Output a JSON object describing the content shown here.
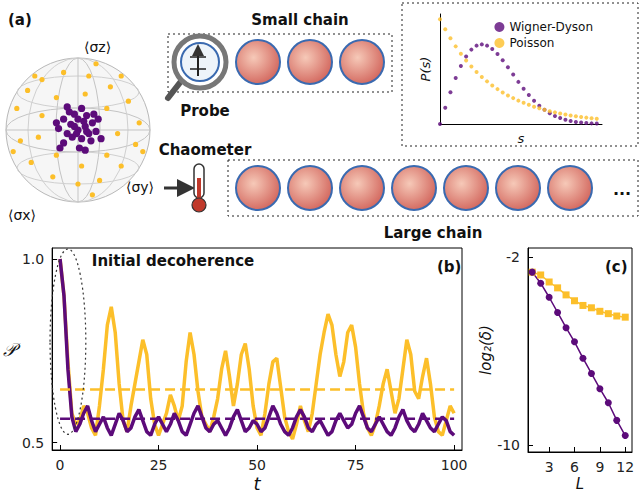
{
  "diagram": {
    "label": "(a)",
    "small_chain": "Small chain",
    "probe": "Probe",
    "chaometer": "Chaometer",
    "large_chain": "Large chain",
    "ellipsis": "...",
    "bloch_sphere": {
      "x_label": "⟨σx⟩",
      "y_label": "⟨σy⟩",
      "z_label": "⟨σz⟩",
      "series": [
        {
          "color": "#fcbf2a",
          "x": [
            -0.85,
            -0.7,
            -0.5,
            -0.2,
            0.15,
            0.45,
            0.7,
            0.85,
            0.8,
            0.6,
            0.3,
            0,
            -0.35,
            -0.65,
            -0.8,
            -0.5,
            -0.3,
            0.1,
            0.4,
            0.55,
            0.4,
            0.05,
            -0.3,
            -0.55,
            0.6,
            -0.6,
            0.25,
            -0.9,
            0.9,
            0.2
          ],
          "y": [
            0.3,
            0.55,
            0.7,
            0.8,
            0.75,
            0.6,
            0.4,
            0.1,
            -0.2,
            -0.5,
            -0.7,
            -0.75,
            -0.65,
            -0.45,
            -0.15,
            0.2,
            0.45,
            0.5,
            0.3,
            -0.05,
            -0.35,
            -0.5,
            -0.35,
            -0.1,
            0.75,
            0.75,
            0.92,
            -0.3,
            -0.3,
            -0.9
          ]
        },
        {
          "color": "#5c0b7a",
          "x": [
            0,
            0.1,
            -0.1,
            0.05,
            -0.15,
            0.2,
            -0.2,
            0.12,
            -0.05,
            0.18,
            -0.2,
            0.25,
            -0.27,
            0.02,
            0.08,
            -0.08,
            0.15,
            -0.12,
            0.28,
            -0.25,
            0.05,
            -0.02,
            0.22,
            -0.3,
            0.1,
            -0.15,
            0.32,
            0,
            -0.05,
            0.12
          ],
          "y": [
            0,
            0.05,
            0.08,
            -0.12,
            -0.05,
            0.1,
            0.15,
            0.2,
            0.22,
            -0.15,
            -0.18,
            -0.02,
            0.02,
            -0.25,
            0.12,
            -0.1,
            -0.05,
            0.25,
            0.15,
            -0.25,
            0.3,
            -0.05,
            0.22,
            0.1,
            -0.28,
            0.32,
            -0.12,
            0.15,
            0.05,
            -0.02
          ]
        }
      ]
    }
  },
  "chart_data": [
    {
      "type": "scatter",
      "marker": "circle",
      "x_label": "s",
      "y_label": "P(s)",
      "xlim": [
        0,
        3.1
      ],
      "ylim": [
        0,
        1.05
      ],
      "tick_labels": false,
      "legend": "upper right",
      "x": [
        0,
        0.1,
        0.2,
        0.3,
        0.4,
        0.5,
        0.6,
        0.7,
        0.8,
        0.9,
        1.0,
        1.1,
        1.2,
        1.3,
        1.4,
        1.5,
        1.6,
        1.7,
        1.8,
        1.9,
        2.0,
        2.1,
        2.2,
        2.3,
        2.4,
        2.5,
        2.6,
        2.7,
        2.8,
        2.9,
        3.0
      ],
      "series": [
        {
          "name": "Wigner-Dyson",
          "color": "#5c0b7a",
          "values": [
            0,
            0.156,
            0.304,
            0.439,
            0.554,
            0.645,
            0.71,
            0.748,
            0.76,
            0.748,
            0.716,
            0.668,
            0.608,
            0.542,
            0.472,
            0.402,
            0.336,
            0.276,
            0.222,
            0.175,
            0.136,
            0.103,
            0.077,
            0.057,
            0.041,
            0.029,
            0.02,
            0.014,
            0.009,
            0.006,
            0.004
          ]
        },
        {
          "name": "Poisson",
          "color": "#fcbf2a",
          "values": [
            1,
            0.905,
            0.819,
            0.741,
            0.67,
            0.607,
            0.549,
            0.497,
            0.449,
            0.407,
            0.368,
            0.333,
            0.301,
            0.273,
            0.247,
            0.223,
            0.202,
            0.183,
            0.165,
            0.15,
            0.135,
            0.122,
            0.111,
            0.1,
            0.091,
            0.082,
            0.074,
            0.067,
            0.061,
            0.055,
            0.05
          ]
        }
      ]
    },
    {
      "type": "line",
      "title": "(b)",
      "annotation": "Initial decoherence",
      "x_label": "t",
      "y_label": "𝒫",
      "xlim": [
        -2,
        102
      ],
      "xticks": [
        0,
        25,
        50,
        75,
        100
      ],
      "ylim": [
        0.48,
        1.03
      ],
      "yticks": [
        0.5,
        {
          "value": 1,
          "label": "1.0"
        }
      ],
      "x": [
        0,
        1,
        2,
        3,
        4,
        5,
        6,
        7,
        8,
        9,
        10,
        11,
        12,
        13,
        14,
        15,
        16,
        17,
        18,
        19,
        20,
        21,
        22,
        23,
        24,
        25,
        26,
        27,
        28,
        29,
        30,
        31,
        32,
        33,
        34,
        35,
        36,
        37,
        38,
        39,
        40,
        41,
        42,
        43,
        44,
        45,
        46,
        47,
        48,
        49,
        50,
        51,
        52,
        53,
        54,
        55,
        56,
        57,
        58,
        59,
        60,
        61,
        62,
        63,
        64,
        65,
        66,
        67,
        68,
        69,
        70,
        71,
        72,
        73,
        74,
        75,
        76,
        77,
        78,
        79,
        80,
        81,
        82,
        83,
        84,
        85,
        86,
        87,
        88,
        89,
        90,
        91,
        92,
        93,
        94,
        95,
        96,
        97,
        98,
        99,
        100
      ],
      "series": [
        {
          "color": "#fcbf2a",
          "values": [
            1.0,
            0.9,
            0.72,
            0.58,
            0.55,
            0.56,
            0.6,
            0.58,
            0.54,
            0.52,
            0.6,
            0.7,
            0.82,
            0.87,
            0.8,
            0.66,
            0.56,
            0.53,
            0.6,
            0.66,
            0.72,
            0.78,
            0.74,
            0.62,
            0.55,
            0.52,
            0.55,
            0.58,
            0.63,
            0.6,
            0.56,
            0.6,
            0.72,
            0.8,
            0.74,
            0.64,
            0.57,
            0.55,
            0.53,
            0.57,
            0.62,
            0.7,
            0.75,
            0.68,
            0.6,
            0.66,
            0.74,
            0.77,
            0.7,
            0.6,
            0.54,
            0.52,
            0.58,
            0.66,
            0.72,
            0.73,
            0.65,
            0.57,
            0.53,
            0.51,
            0.55,
            0.6,
            0.56,
            0.53,
            0.58,
            0.66,
            0.74,
            0.8,
            0.85,
            0.82,
            0.74,
            0.68,
            0.72,
            0.8,
            0.82,
            0.76,
            0.66,
            0.58,
            0.54,
            0.52,
            0.55,
            0.6,
            0.66,
            0.7,
            0.64,
            0.58,
            0.62,
            0.7,
            0.78,
            0.74,
            0.64,
            0.62,
            0.68,
            0.73,
            0.66,
            0.57,
            0.53,
            0.52,
            0.56,
            0.6,
            0.58
          ]
        },
        {
          "color": "#5c0b7a",
          "values": [
            1.0,
            0.9,
            0.7,
            0.57,
            0.53,
            0.55,
            0.58,
            0.6,
            0.56,
            0.53,
            0.55,
            0.57,
            0.54,
            0.52,
            0.55,
            0.58,
            0.56,
            0.53,
            0.54,
            0.57,
            0.59,
            0.56,
            0.53,
            0.52,
            0.55,
            0.57,
            0.55,
            0.53,
            0.55,
            0.58,
            0.56,
            0.53,
            0.52,
            0.55,
            0.58,
            0.6,
            0.57,
            0.54,
            0.53,
            0.55,
            0.56,
            0.54,
            0.52,
            0.54,
            0.57,
            0.59,
            0.56,
            0.53,
            0.54,
            0.56,
            0.55,
            0.53,
            0.54,
            0.57,
            0.6,
            0.58,
            0.55,
            0.53,
            0.52,
            0.54,
            0.57,
            0.59,
            0.57,
            0.54,
            0.53,
            0.55,
            0.56,
            0.54,
            0.52,
            0.53,
            0.56,
            0.58,
            0.56,
            0.54,
            0.55,
            0.58,
            0.6,
            0.57,
            0.54,
            0.53,
            0.55,
            0.57,
            0.55,
            0.53,
            0.52,
            0.54,
            0.57,
            0.59,
            0.56,
            0.54,
            0.53,
            0.55,
            0.58,
            0.56,
            0.54,
            0.53,
            0.55,
            0.57,
            0.56,
            0.53,
            0.52
          ]
        },
        {
          "color": "#fcbf2a",
          "line_style": "dashed",
          "x": [
            0,
            100
          ],
          "values": [
            0.645,
            0.645
          ]
        },
        {
          "color": "#5c0b7a",
          "line_style": "dashed",
          "x": [
            0,
            100
          ],
          "values": [
            0.565,
            0.565
          ]
        }
      ]
    },
    {
      "type": "line",
      "title": "(c)",
      "x_label": "L",
      "y_label": "log₂(δ)",
      "xlim": [
        0.5,
        12.8
      ],
      "xticks": [
        3,
        6,
        9,
        12
      ],
      "ylim": [
        -10.3,
        -1.6
      ],
      "yticks": [
        -2,
        -10
      ],
      "x": [
        1,
        2,
        3,
        4,
        5,
        6,
        7,
        8,
        9,
        10,
        11,
        12
      ],
      "series": [
        {
          "color": "#fcbf2a",
          "marker": "square",
          "values": [
            -2.63,
            -2.75,
            -3.05,
            -3.3,
            -3.6,
            -3.85,
            -4.05,
            -4.15,
            -4.3,
            -4.4,
            -4.5,
            -4.55
          ]
        },
        {
          "color": "#5c0b7a",
          "marker": "circle",
          "values": [
            -2.63,
            -3.1,
            -3.7,
            -4.35,
            -5.0,
            -5.6,
            -6.3,
            -6.95,
            -7.6,
            -8.2,
            -8.95,
            -9.6
          ]
        }
      ]
    }
  ]
}
